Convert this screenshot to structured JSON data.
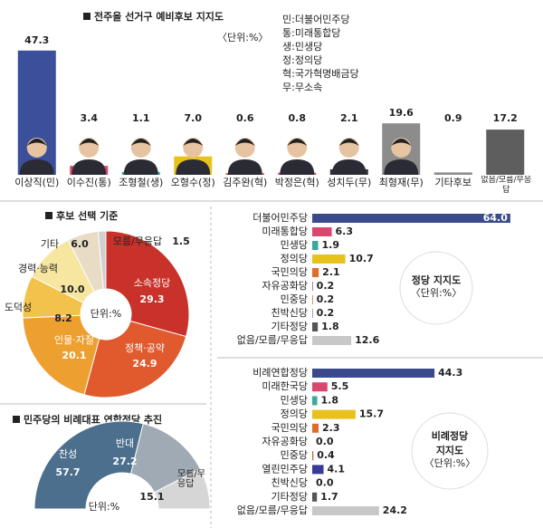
{
  "chart_data": [
    {
      "type": "bar",
      "title": "전주을 선거구 예비후보 지지도",
      "unit": "〈단위:%〉",
      "legend": [
        "민:더불어민주당",
        "통:미래통합당",
        "생:민생당",
        "정:정의당",
        "혁:국가혁명배금당",
        "무:무소속"
      ],
      "categories": [
        "이상직(민)",
        "이수진(통)",
        "조형철(생)",
        "오형수(정)",
        "김주완(혁)",
        "박정은(혁)",
        "성치두(무)",
        "최형재(무)",
        "기타후보",
        "없음/모름/무응답"
      ],
      "values": [
        47.3,
        3.4,
        1.1,
        7.0,
        0.6,
        0.8,
        2.1,
        19.6,
        0.9,
        17.2
      ],
      "value_labels": [
        "47.3",
        "3.4",
        "1.1",
        "7.0",
        "0.6",
        "0.8",
        "2.1",
        "19.6",
        "0.9",
        "17.2"
      ],
      "colors": [
        "#3c4f9a",
        "#d9466e",
        "#3aa89a",
        "#e8c21c",
        "#d83a3a",
        "#d9466e",
        "#333333",
        "#8c8c8c",
        "#8c8c8c",
        "#5e5e5e"
      ]
    },
    {
      "type": "donut",
      "title": "후보 선택 기준",
      "unit": "단위:%",
      "categories": [
        "소속정당",
        "정책·공약",
        "인물·자질",
        "도덕성",
        "경력·능력",
        "기타",
        "모름/무응답"
      ],
      "values": [
        29.3,
        24.9,
        20.1,
        8.2,
        10.0,
        6.0,
        1.5
      ],
      "value_labels": [
        "29.3",
        "24.9",
        "20.1",
        "8.2",
        "10.0",
        "6.0",
        "1.5"
      ],
      "colors": [
        "#c8322a",
        "#e05a2e",
        "#eda030",
        "#f3c24a",
        "#f6e6a0",
        "#e8dcc4",
        "#d0d0d0"
      ]
    },
    {
      "type": "semidonut",
      "title": "민주당의 비례대표 연합정당 추진",
      "unit": "단위:%",
      "categories": [
        "찬성",
        "반대",
        "모름/무응답"
      ],
      "values": [
        57.7,
        27.2,
        15.1
      ],
      "value_labels": [
        "57.7",
        "27.2",
        "15.1"
      ],
      "colors": [
        "#4d6f8e",
        "#a0aab5",
        "#d6d6d6"
      ]
    },
    {
      "type": "hbar",
      "title": [
        "정당 지지도"
      ],
      "unit": "〈단위:%〉",
      "categories": [
        "더불어민주당",
        "미래통합당",
        "민생당",
        "정의당",
        "국민의당",
        "자유공화당",
        "민중당",
        "친박신당",
        "기타정당",
        "없음/모름/무응답"
      ],
      "values": [
        64.0,
        6.3,
        1.9,
        10.7,
        2.1,
        0.2,
        0.2,
        0.2,
        1.8,
        12.6
      ],
      "value_labels": [
        "64.0",
        "6.3",
        "1.9",
        "10.7",
        "2.1",
        "0.2",
        "0.2",
        "0.2",
        "1.8",
        "12.6"
      ],
      "colors": [
        "#3a4a8c",
        "#d9466e",
        "#3aa89a",
        "#e8c21c",
        "#e06c2a",
        "#8a3a8a",
        "#c0602a",
        "#5a7ab0",
        "#555555",
        "#c8c8c8"
      ]
    },
    {
      "type": "hbar",
      "title": [
        "비례정당",
        "지지도"
      ],
      "unit": "〈단위:%〉",
      "categories": [
        "비례연합정당",
        "미래한국당",
        "민생당",
        "정의당",
        "국민의당",
        "자유공화당",
        "민중당",
        "열린민주당",
        "친박신당",
        "기타정당",
        "없음/모름/무응답"
      ],
      "values": [
        44.3,
        5.5,
        1.8,
        15.7,
        2.3,
        0.0,
        0.4,
        4.1,
        0.0,
        1.7,
        24.2
      ],
      "value_labels": [
        "44.3",
        "5.5",
        "1.8",
        "15.7",
        "2.3",
        "0.0",
        "0.4",
        "4.1",
        "0.0",
        "1.7",
        "24.2"
      ],
      "colors": [
        "#3a4a8c",
        "#d9466e",
        "#3aa89a",
        "#e8c21c",
        "#e06c2a",
        "#8a3a8a",
        "#c0602a",
        "#3a3a9a",
        "#5a7ab0",
        "#555555",
        "#c8c8c8"
      ]
    }
  ]
}
